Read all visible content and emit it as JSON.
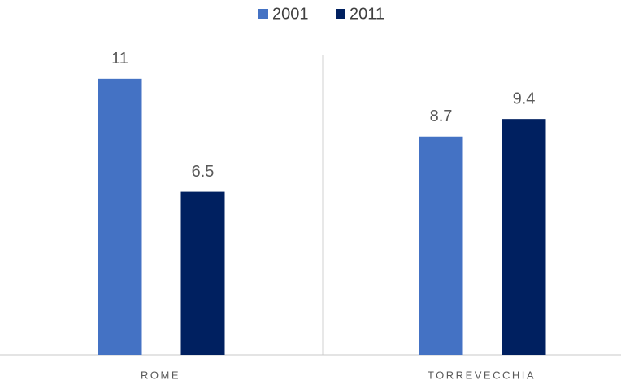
{
  "chart_data": {
    "type": "bar",
    "categories": [
      "ROME",
      "TORREVECCHIA"
    ],
    "series": [
      {
        "name": "2001",
        "color": "#4472c4",
        "values": [
          11,
          8.7
        ]
      },
      {
        "name": "2011",
        "color": "#002060",
        "values": [
          6.5,
          9.4
        ]
      }
    ],
    "ylim": [
      0,
      12
    ],
    "legend": "top"
  }
}
